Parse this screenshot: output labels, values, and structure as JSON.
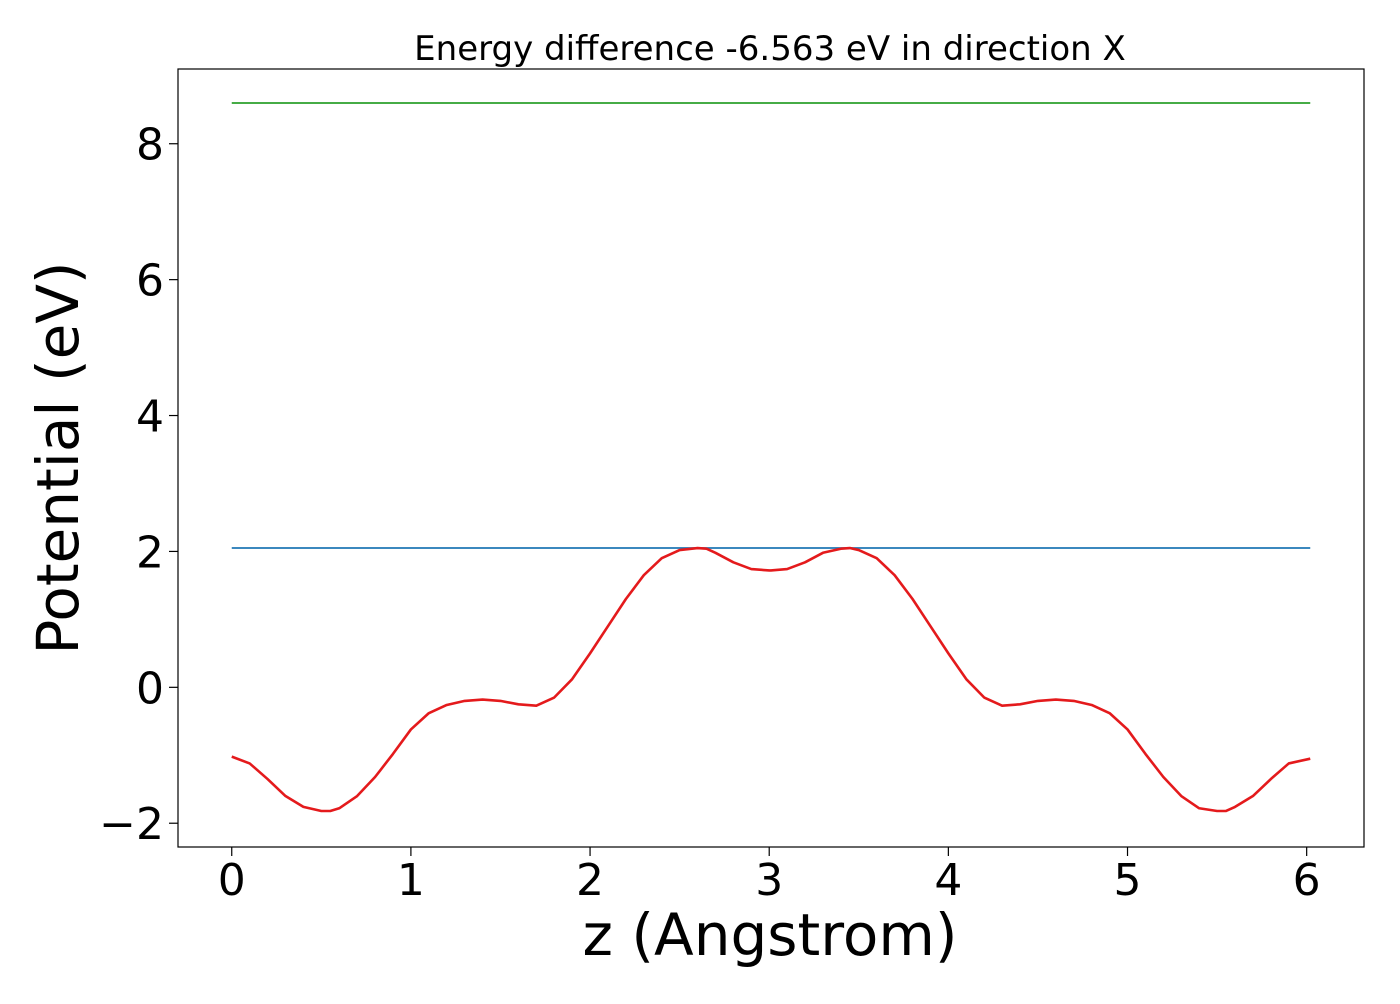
{
  "chart_data": {
    "type": "line",
    "title": "Energy difference -6.563 eV in direction X",
    "xlabel": "z (Angstrom)",
    "ylabel": "Potential (eV)",
    "xlim": [
      -0.3,
      6.32
    ],
    "ylim": [
      -2.35,
      9.1
    ],
    "xticks": [
      0,
      1,
      2,
      3,
      4,
      5,
      6
    ],
    "xtick_labels": [
      "0",
      "1",
      "2",
      "3",
      "4",
      "5",
      "6"
    ],
    "yticks": [
      -2,
      0,
      2,
      4,
      6,
      8
    ],
    "ytick_labels": [
      "−2",
      "0",
      "2",
      "4",
      "6",
      "8"
    ],
    "grid": false,
    "series": [
      {
        "color": "#2ca02c",
        "x": [
          0,
          6.02
        ],
        "y": [
          8.6,
          8.6
        ]
      },
      {
        "color": "#1f77b4",
        "x": [
          0,
          6.02
        ],
        "y": [
          2.05,
          2.05
        ]
      },
      {
        "color": "#e41a1c",
        "x": [
          0,
          0.1,
          0.2,
          0.3,
          0.4,
          0.5,
          0.55,
          0.6,
          0.7,
          0.8,
          0.9,
          1.0,
          1.1,
          1.2,
          1.3,
          1.4,
          1.5,
          1.6,
          1.7,
          1.8,
          1.9,
          2.0,
          2.1,
          2.2,
          2.3,
          2.4,
          2.5,
          2.6,
          2.65,
          2.7,
          2.8,
          2.9,
          3.0,
          3.01,
          3.1,
          3.2,
          3.3,
          3.4,
          3.45,
          3.5,
          3.6,
          3.7,
          3.8,
          3.9,
          4.0,
          4.1,
          4.2,
          4.3,
          4.4,
          4.5,
          4.6,
          4.7,
          4.8,
          4.9,
          5.0,
          5.1,
          5.2,
          5.3,
          5.4,
          5.5,
          5.55,
          5.6,
          5.7,
          5.8,
          5.9,
          6.02
        ],
        "y": [
          -1.02,
          -1.12,
          -1.35,
          -1.6,
          -1.76,
          -1.82,
          -1.82,
          -1.78,
          -1.6,
          -1.32,
          -0.98,
          -0.62,
          -0.38,
          -0.26,
          -0.2,
          -0.18,
          -0.2,
          -0.25,
          -0.27,
          -0.15,
          0.12,
          0.5,
          0.9,
          1.3,
          1.65,
          1.9,
          2.02,
          2.05,
          2.04,
          1.98,
          1.84,
          1.74,
          1.72,
          1.72,
          1.74,
          1.84,
          1.98,
          2.04,
          2.05,
          2.02,
          1.9,
          1.65,
          1.3,
          0.9,
          0.5,
          0.12,
          -0.15,
          -0.27,
          -0.25,
          -0.2,
          -0.18,
          -0.2,
          -0.26,
          -0.38,
          -0.62,
          -0.98,
          -1.32,
          -1.6,
          -1.78,
          -1.82,
          -1.82,
          -1.76,
          -1.6,
          -1.35,
          -1.12,
          -1.05
        ]
      }
    ]
  }
}
